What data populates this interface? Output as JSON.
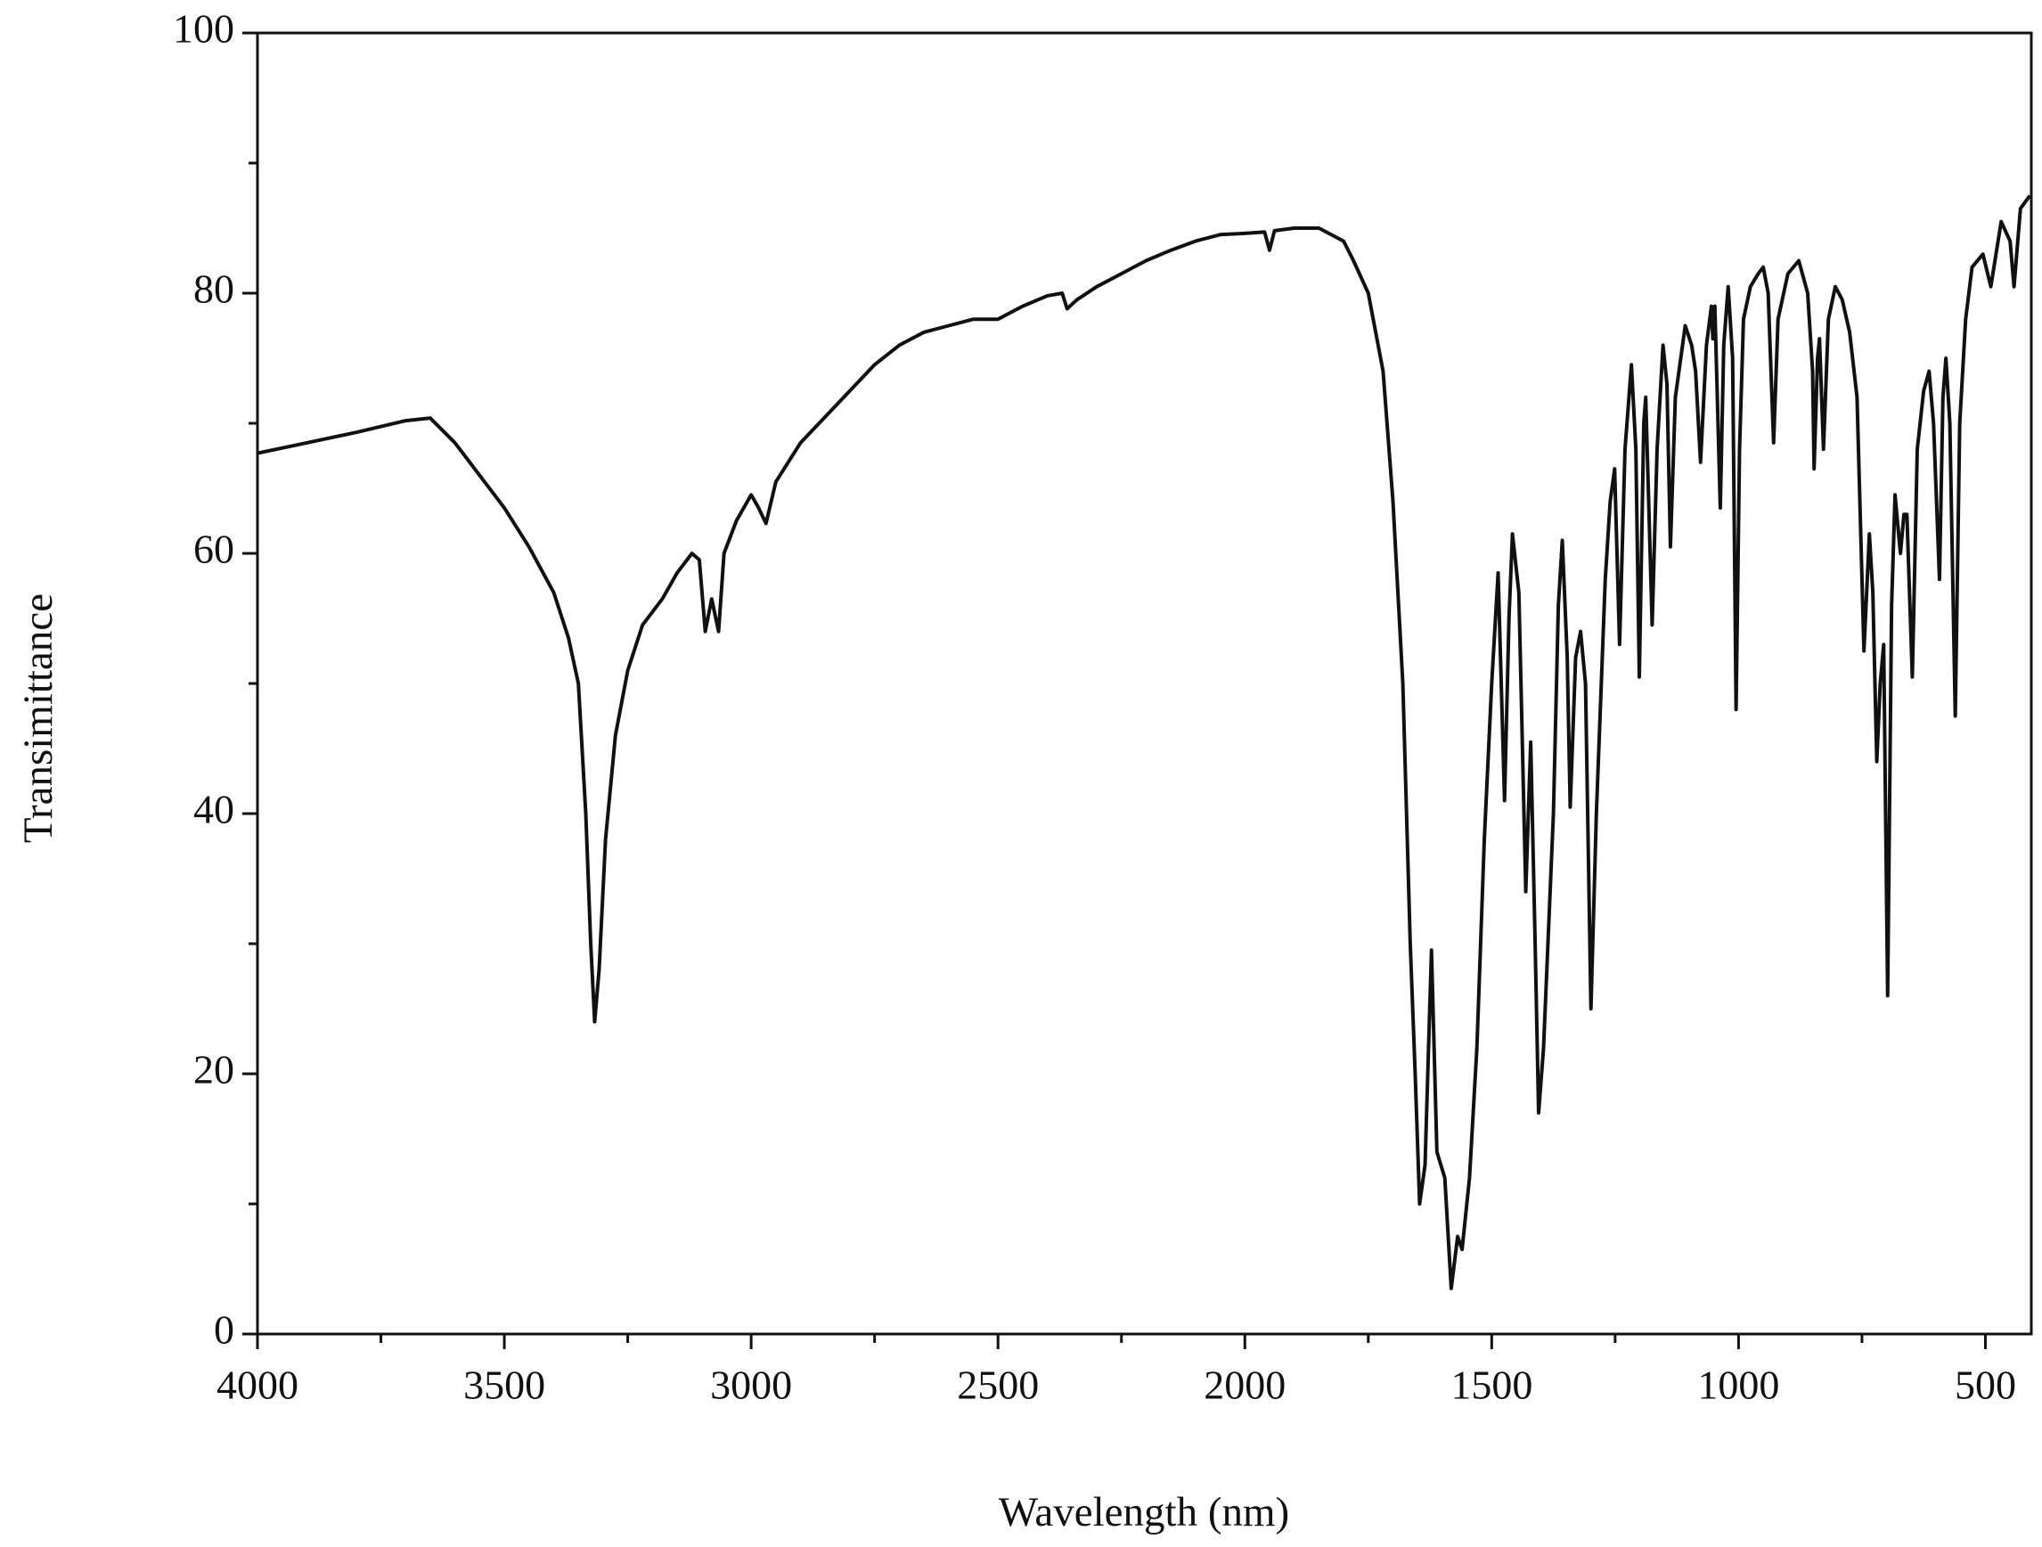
{
  "chart_data": {
    "type": "line",
    "x_label": "Wavelength (nm)",
    "y_label": "Transimittance",
    "color": "#111111",
    "xlim": [
      4000,
      407
    ],
    "ylim": [
      0,
      100
    ],
    "xticks": [
      4000,
      3500,
      3000,
      2500,
      2000,
      1500,
      1000,
      500
    ],
    "yticks": [
      0,
      20,
      40,
      60,
      80,
      100
    ],
    "xminorticks": [
      3750,
      3250,
      2750,
      2250,
      1750,
      1250,
      750
    ],
    "yminorticks": [
      10,
      30,
      50,
      70,
      90
    ],
    "x": [
      4000,
      3900,
      3800,
      3700,
      3650,
      3600,
      3550,
      3500,
      3450,
      3400,
      3370,
      3350,
      3335,
      3325,
      3317,
      3308,
      3295,
      3275,
      3250,
      3220,
      3180,
      3150,
      3120,
      3105,
      3093,
      3080,
      3066,
      3055,
      3030,
      3000,
      2985,
      2970,
      2950,
      2900,
      2850,
      2800,
      2750,
      2700,
      2650,
      2600,
      2550,
      2500,
      2450,
      2400,
      2370,
      2360,
      2340,
      2300,
      2250,
      2200,
      2150,
      2100,
      2050,
      2000,
      1960,
      1950,
      1940,
      1900,
      1850,
      1800,
      1780,
      1750,
      1720,
      1700,
      1680,
      1665,
      1655,
      1646,
      1635,
      1622,
      1611,
      1595,
      1582,
      1569,
      1560,
      1545,
      1530,
      1515,
      1500,
      1487,
      1474,
      1465,
      1458,
      1445,
      1431,
      1421,
      1412,
      1405,
      1395,
      1375,
      1365,
      1357,
      1347,
      1341,
      1330,
      1320,
      1310,
      1299,
      1288,
      1270,
      1260,
      1251,
      1241,
      1230,
      1217,
      1208,
      1201,
      1192,
      1188,
      1175,
      1165,
      1153,
      1145,
      1138,
      1128,
      1108,
      1095,
      1087,
      1077,
      1065,
      1055,
      1052,
      1048,
      1037,
      1030,
      1021,
      1012,
      1005,
      998,
      990,
      976,
      960,
      950,
      940,
      929,
      920,
      900,
      878,
      860,
      850,
      847,
      840,
      836,
      828,
      818,
      804,
      790,
      775,
      760,
      746,
      735,
      728,
      720,
      713,
      706,
      698,
      690,
      683,
      677,
      672,
      665,
      659,
      648,
      638,
      625,
      614,
      605,
      593,
      586,
      580,
      572,
      561,
      552,
      540,
      527,
      505,
      489,
      468,
      450,
      442,
      429,
      410
    ],
    "values": [
      67.7,
      68.5,
      69.3,
      70.2,
      70.4,
      68.5,
      66,
      63.5,
      60.5,
      57,
      53.5,
      50,
      40,
      30,
      24,
      28,
      38,
      46,
      51,
      54.5,
      56.5,
      58.5,
      60,
      59.5,
      54,
      56.5,
      54,
      60,
      62.5,
      64.5,
      63.5,
      62.3,
      65.5,
      68.5,
      70.5,
      72.5,
      74.5,
      76,
      77,
      77.5,
      78,
      78,
      79,
      79.8,
      80,
      78.8,
      79.5,
      80.5,
      81.5,
      82.5,
      83.3,
      84,
      84.5,
      84.6,
      84.7,
      83.3,
      84.8,
      85,
      85,
      84,
      82.5,
      80,
      74,
      64,
      50,
      30,
      20,
      10,
      13,
      29.5,
      14,
      12,
      3.5,
      7.5,
      6.5,
      12,
      22,
      38,
      50,
      58.5,
      41,
      55,
      61.5,
      57,
      34,
      45.5,
      30,
      17,
      22,
      40,
      56,
      61,
      52,
      40.5,
      52,
      54,
      50,
      25,
      40,
      58,
      64,
      66.5,
      53,
      68,
      74.5,
      68,
      50.5,
      70,
      72,
      54.5,
      68,
      76,
      73,
      60.5,
      72,
      77.5,
      76,
      74,
      67,
      76,
      79,
      76.5,
      79,
      63.5,
      76,
      80.5,
      75,
      48,
      68,
      78,
      80.5,
      81.5,
      82,
      80,
      68.5,
      78,
      81.5,
      82.5,
      80,
      74,
      66.5,
      75,
      76.5,
      68,
      78,
      80.5,
      79.5,
      77,
      72,
      52.5,
      61.5,
      57,
      44,
      50,
      53,
      26,
      56,
      64.5,
      62,
      60,
      63,
      63,
      50.5,
      68,
      72.5,
      74,
      70,
      58,
      72,
      75,
      70,
      47.5,
      70,
      78,
      82,
      83,
      80.5,
      85.5,
      84,
      80.5,
      86.5,
      87.5
    ]
  }
}
